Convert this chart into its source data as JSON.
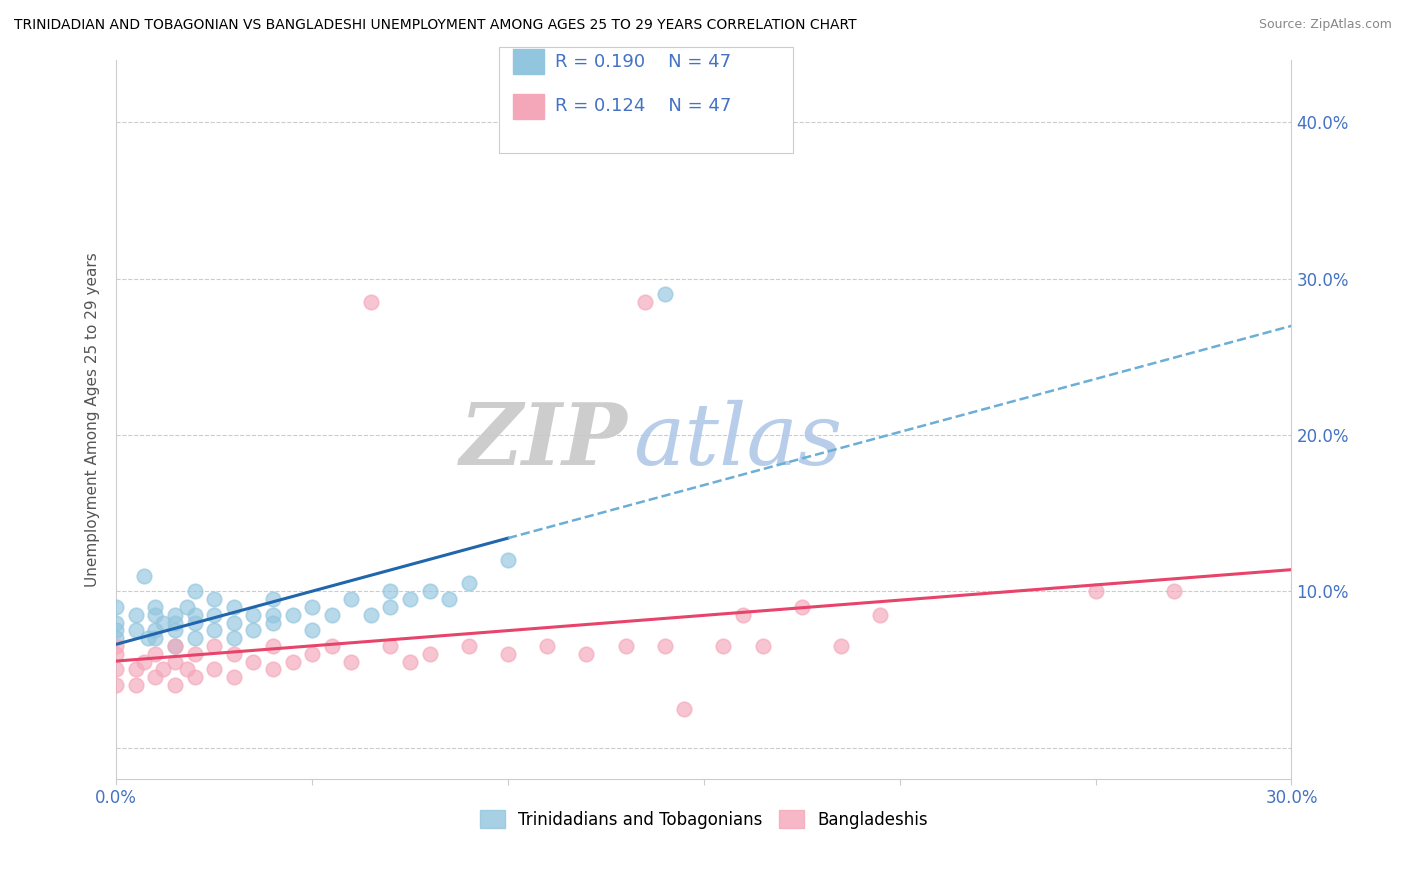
{
  "title": "TRINIDADIAN AND TOBAGONIAN VS BANGLADESHI UNEMPLOYMENT AMONG AGES 25 TO 29 YEARS CORRELATION CHART",
  "source": "Source: ZipAtlas.com",
  "ylabel": "Unemployment Among Ages 25 to 29 years",
  "xlim": [
    0.0,
    0.3
  ],
  "ylim": [
    -0.02,
    0.44
  ],
  "xticks": [
    0.0,
    0.05,
    0.1,
    0.15,
    0.2,
    0.25,
    0.3
  ],
  "xtick_labels": [
    "0.0%",
    "",
    "",
    "",
    "",
    "",
    "30.0%"
  ],
  "yticks": [
    0.0,
    0.1,
    0.2,
    0.3,
    0.4
  ],
  "right_ytick_labels": [
    "",
    "10.0%",
    "20.0%",
    "30.0%",
    "40.0%"
  ],
  "r_trinidadian": 0.19,
  "n_trinidadian": 47,
  "r_bangladeshi": 0.124,
  "n_bangladeshi": 47,
  "color_trinidadian": "#92c5de",
  "color_bangladeshi": "#f4a7b9",
  "line_color_trinidadian": "#2166ac",
  "line_color_bangladeshi": "#e8436a",
  "line_color_trinidadian_dashed": "#6baed6",
  "background_color": "#ffffff",
  "trinidadian_x": [
    0.0,
    0.0,
    0.0,
    0.0,
    0.005,
    0.005,
    0.007,
    0.008,
    0.01,
    0.01,
    0.01,
    0.01,
    0.012,
    0.015,
    0.015,
    0.015,
    0.015,
    0.018,
    0.02,
    0.02,
    0.02,
    0.02,
    0.025,
    0.025,
    0.025,
    0.03,
    0.03,
    0.03,
    0.035,
    0.035,
    0.04,
    0.04,
    0.04,
    0.045,
    0.05,
    0.05,
    0.055,
    0.06,
    0.065,
    0.07,
    0.07,
    0.075,
    0.08,
    0.085,
    0.09,
    0.1,
    0.14
  ],
  "trinidadian_y": [
    0.07,
    0.075,
    0.08,
    0.09,
    0.075,
    0.085,
    0.11,
    0.07,
    0.07,
    0.075,
    0.085,
    0.09,
    0.08,
    0.065,
    0.075,
    0.08,
    0.085,
    0.09,
    0.07,
    0.08,
    0.085,
    0.1,
    0.075,
    0.085,
    0.095,
    0.07,
    0.08,
    0.09,
    0.075,
    0.085,
    0.08,
    0.085,
    0.095,
    0.085,
    0.075,
    0.09,
    0.085,
    0.095,
    0.085,
    0.09,
    0.1,
    0.095,
    0.1,
    0.095,
    0.105,
    0.12,
    0.29
  ],
  "bangladeshi_x": [
    0.0,
    0.0,
    0.0,
    0.0,
    0.005,
    0.005,
    0.007,
    0.01,
    0.01,
    0.012,
    0.015,
    0.015,
    0.015,
    0.018,
    0.02,
    0.02,
    0.025,
    0.025,
    0.03,
    0.03,
    0.035,
    0.04,
    0.04,
    0.045,
    0.05,
    0.055,
    0.06,
    0.065,
    0.07,
    0.075,
    0.08,
    0.09,
    0.1,
    0.11,
    0.12,
    0.13,
    0.135,
    0.14,
    0.145,
    0.155,
    0.16,
    0.165,
    0.175,
    0.185,
    0.195,
    0.25,
    0.27
  ],
  "bangladeshi_y": [
    0.04,
    0.05,
    0.06,
    0.065,
    0.04,
    0.05,
    0.055,
    0.045,
    0.06,
    0.05,
    0.04,
    0.055,
    0.065,
    0.05,
    0.045,
    0.06,
    0.05,
    0.065,
    0.045,
    0.06,
    0.055,
    0.05,
    0.065,
    0.055,
    0.06,
    0.065,
    0.055,
    0.285,
    0.065,
    0.055,
    0.06,
    0.065,
    0.06,
    0.065,
    0.06,
    0.065,
    0.285,
    0.065,
    0.025,
    0.065,
    0.085,
    0.065,
    0.09,
    0.065,
    0.085,
    0.1,
    0.1
  ]
}
